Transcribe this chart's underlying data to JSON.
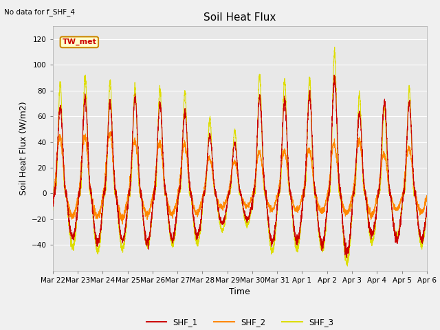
{
  "title": "Soil Heat Flux",
  "xlabel": "Time",
  "ylabel": "Soil Heat Flux (W/m2)",
  "note": "No data for f_SHF_4",
  "box_label": "TW_met",
  "ylim": [
    -60,
    130
  ],
  "yticks": [
    -40,
    -20,
    0,
    20,
    40,
    60,
    80,
    100,
    120
  ],
  "x_tick_labels": [
    "Mar 22",
    "Mar 23",
    "Mar 24",
    "Mar 25",
    "Mar 26",
    "Mar 27",
    "Mar 28",
    "Mar 29",
    "Mar 30",
    "Mar 31",
    "Apr 1",
    "Apr 2",
    "Apr 3",
    "Apr 4",
    "Apr 5",
    "Apr 6"
  ],
  "color_SHF1": "#cc0000",
  "color_SHF2": "#ff8800",
  "color_SHF3": "#dddd00",
  "legend_labels": [
    "SHF_1",
    "SHF_2",
    "SHF_3"
  ],
  "fig_bg": "#f0f0f0",
  "axes_bg": "#e8e8e8",
  "n_days": 15,
  "points_per_day": 288
}
